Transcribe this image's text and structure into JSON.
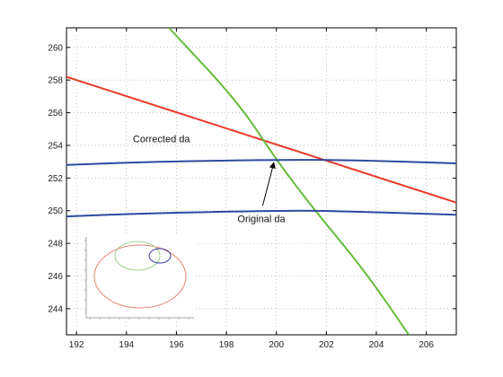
{
  "chart_data": {
    "type": "line",
    "title": "",
    "xlabel": "",
    "ylabel": "",
    "xlim": [
      191.6,
      207.2
    ],
    "ylim": [
      242.4,
      261.2
    ],
    "xticks": [
      192,
      194,
      196,
      198,
      200,
      202,
      204,
      206
    ],
    "yticks": [
      244,
      246,
      248,
      250,
      252,
      254,
      256,
      258,
      260
    ],
    "grid": "dotted",
    "legend": "none",
    "colors": {
      "red": "#e8392a",
      "green": "#66bb3a",
      "blue": "#2e4a9e",
      "axis": "#000000"
    },
    "series": [
      {
        "color": "#e8392a",
        "points": [
          [
            191.6,
            258.2
          ],
          [
            207.2,
            250.5
          ]
        ]
      },
      {
        "color": "#66bb3a",
        "points": [
          [
            195.7,
            261.2
          ],
          [
            198.5,
            256.6
          ],
          [
            200.0,
            253.1
          ],
          [
            201.6,
            249.9
          ],
          [
            203.5,
            246.4
          ],
          [
            205.3,
            242.4
          ]
        ]
      },
      {
        "color": "#2e4a9e",
        "points": [
          [
            191.6,
            252.8
          ],
          [
            195.0,
            253.0
          ],
          [
            200.0,
            253.12
          ],
          [
            203.0,
            253.1
          ],
          [
            207.2,
            252.9
          ]
        ]
      },
      {
        "color": "#2e4a9e",
        "points": [
          [
            191.6,
            249.65
          ],
          [
            195.0,
            249.85
          ],
          [
            200.0,
            250.0
          ],
          [
            202.0,
            250.0
          ],
          [
            207.2,
            249.75
          ]
        ]
      }
    ],
    "annotations": [
      {
        "text": "Corrected da",
        "x": 195.4,
        "y": 254.2
      },
      {
        "text": "Original da",
        "x": 199.4,
        "y": 249.3,
        "arrow_to": [
          199.9,
          252.95
        ]
      }
    ],
    "inset": {
      "description_free": true,
      "ellipses": [
        {
          "color": "#e8826f"
        },
        {
          "color": "#9fd08a"
        },
        {
          "color": "#3a3aa0"
        }
      ]
    }
  }
}
